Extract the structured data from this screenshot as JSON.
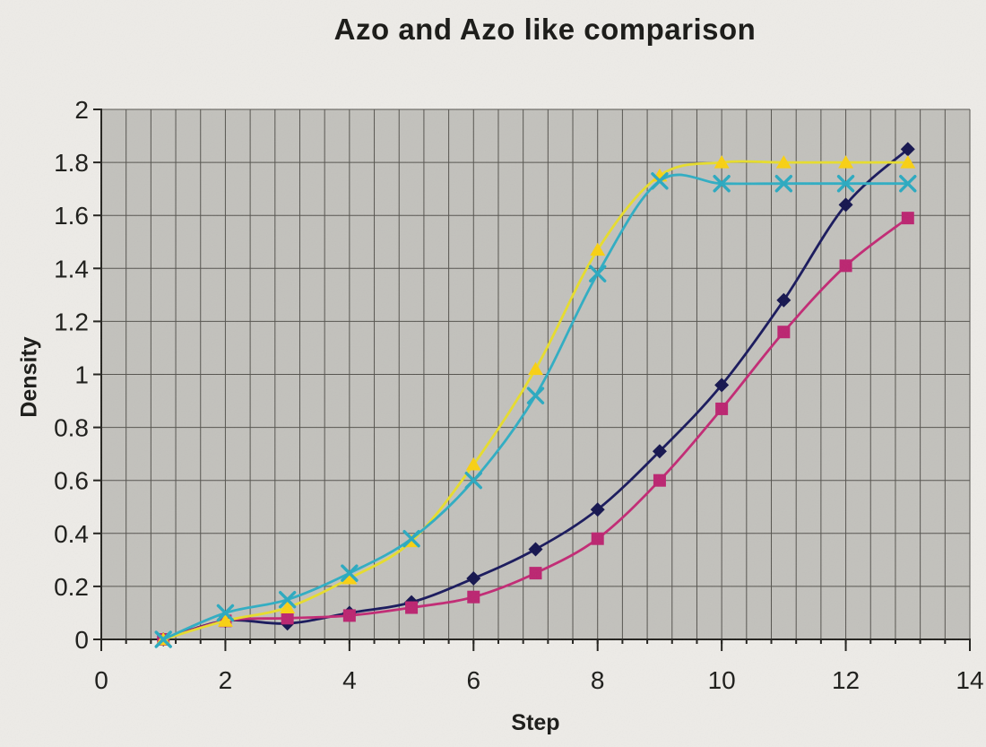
{
  "page": {
    "background_color": "#edebe7",
    "plot_background_color": "#c2c1bc",
    "gridline_color": "#55534e",
    "axis_color": "#23221e",
    "text_color": "#1c1c19"
  },
  "chart_data": {
    "type": "line",
    "title": "Azo and Azo like comparison",
    "xlabel": "Step",
    "ylabel": "Density",
    "legend_position": "none",
    "smoothed_lines": true,
    "grid_on": true,
    "x_axis": {
      "min": 0,
      "max": 14,
      "major_unit": 2,
      "gridline_unit": 0.4,
      "tick_labels": [
        "0",
        "2",
        "4",
        "6",
        "8",
        "10",
        "12",
        "14"
      ]
    },
    "y_axis": {
      "min": 0,
      "max": 2,
      "major_unit": 0.2,
      "gridline_unit": 0.2,
      "tick_labels": [
        "0",
        "0.2",
        "0.4",
        "0.6",
        "0.8",
        "1",
        "1.2",
        "1.4",
        "1.6",
        "1.8",
        "2"
      ]
    },
    "x": [
      1,
      2,
      3,
      4,
      5,
      6,
      7,
      8,
      9,
      10,
      11,
      12,
      13
    ],
    "series": [
      {
        "name": "navy-diamond-series",
        "marker": "diamond",
        "line_color": "#18185c",
        "marker_color": "#14144e",
        "values": [
          0,
          0.07,
          0.06,
          0.1,
          0.14,
          0.23,
          0.34,
          0.49,
          0.71,
          0.96,
          1.28,
          1.64,
          1.85
        ]
      },
      {
        "name": "pink-square-series",
        "marker": "square",
        "line_color": "#c22974",
        "marker_color": "#bb2470",
        "values": [
          0,
          0.07,
          0.08,
          0.09,
          0.12,
          0.16,
          0.25,
          0.38,
          0.6,
          0.87,
          1.16,
          1.41,
          1.59
        ]
      },
      {
        "name": "yellow-triangle-series",
        "marker": "triangle",
        "line_color": "#e7dd2c",
        "marker_color": "#f9d012",
        "values": [
          0,
          0.07,
          0.12,
          0.23,
          0.37,
          0.66,
          1.02,
          1.47,
          1.75,
          1.8,
          1.8,
          1.8,
          1.8
        ]
      },
      {
        "name": "cyan-x-series",
        "marker": "x",
        "line_color": "#2fadc3",
        "marker_color": "#2aa9c0",
        "values": [
          0,
          0.1,
          0.15,
          0.25,
          0.38,
          0.6,
          0.92,
          1.38,
          1.73,
          1.72,
          1.72,
          1.72,
          1.72
        ]
      }
    ]
  }
}
